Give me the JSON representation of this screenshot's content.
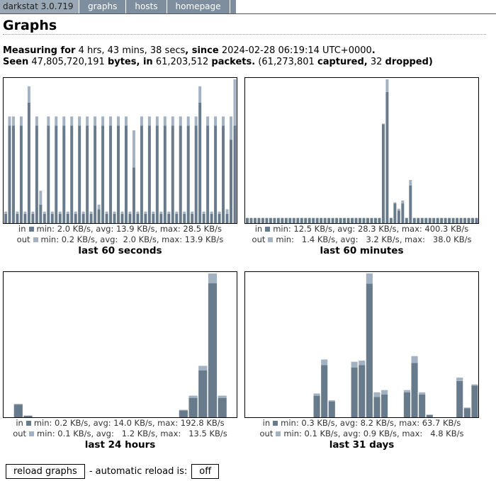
{
  "header": {
    "nav": [
      "darkstat 3.0.719",
      "graphs",
      "hosts",
      "homepage"
    ]
  },
  "title": "Graphs",
  "summary": [
    [
      {
        "text": "Measuring for",
        "bold": true
      },
      {
        "text": "4 hrs, 43 mins, 38 secs",
        "bold": false
      },
      {
        "text": ", since",
        "bold": true
      },
      {
        "text": "2024-02-28 06:19:14 UTC+0000",
        "bold": false
      },
      {
        "text": ".",
        "bold": true
      }
    ],
    [
      {
        "text": "Seen",
        "bold": true
      },
      {
        "text": "47,805,720,191",
        "bold": false
      },
      {
        "text": "bytes, in",
        "bold": true
      },
      {
        "text": "61,203,512",
        "bold": false
      },
      {
        "text": "packets.",
        "bold": true
      },
      {
        "text": "(61,273,801",
        "bold": false
      },
      {
        "text": "captured,",
        "bold": true
      },
      {
        "text": "32",
        "bold": false
      },
      {
        "text": "dropped)",
        "bold": true
      }
    ]
  ],
  "colors": {
    "in": "#687b8c",
    "out": "#a2b2c2"
  },
  "graphs": [
    {
      "title": "last 60 seconds",
      "in_label": "in",
      "out_label": "out",
      "in_stats": "min: 2.0 KB/s, avg: 13.9 KB/s, max: 28.5 KB/s",
      "out_stats": "min: 0.2 KB/s, avg:  2.0 KB/s, max: 13.9 KB/s",
      "in": [
        2,
        21,
        21,
        2,
        21,
        2,
        26,
        2,
        21,
        4,
        2,
        21,
        2,
        21,
        2,
        21,
        2,
        21,
        2,
        21,
        2,
        21,
        2,
        21,
        3,
        21,
        2,
        21,
        2,
        21,
        2,
        21,
        2,
        12,
        2,
        21,
        2,
        21,
        2,
        21,
        2,
        21,
        2,
        21,
        2,
        21,
        2,
        21,
        2,
        21,
        26,
        2,
        21,
        2,
        21,
        2,
        21,
        2,
        18,
        21
      ],
      "out": [
        0.5,
        2,
        2,
        0.5,
        2,
        0.5,
        3.5,
        0.5,
        2,
        3,
        0.5,
        2,
        0.5,
        2,
        0.5,
        2,
        0.5,
        2,
        0.5,
        2,
        0.5,
        2,
        0.5,
        2,
        1,
        2,
        0.5,
        2,
        0.5,
        2,
        0.5,
        2,
        0.5,
        8,
        0.5,
        2,
        0.5,
        2,
        0.5,
        2,
        0.5,
        2,
        0.5,
        2,
        0.5,
        2,
        0.5,
        2,
        0.5,
        2,
        3.5,
        0.5,
        2,
        0.5,
        2,
        0.5,
        2,
        1,
        5,
        10
      ]
    },
    {
      "title": "last 60 minutes",
      "in_label": "in",
      "out_label": "out",
      "in_stats": "min: 12.5 KB/s, avg: 28.3 KB/s, max: 400.3 KB/s",
      "out_stats": "min:   1.4 KB/s, avg:   3.2 KB/s, max:   38.0 KB/s",
      "in": [
        14,
        14,
        14,
        14,
        14,
        14,
        14,
        14,
        14,
        14,
        14,
        14,
        14,
        14,
        14,
        14,
        14,
        14,
        14,
        14,
        14,
        14,
        14,
        14,
        14,
        14,
        14,
        14,
        14,
        14,
        14,
        14,
        14,
        14,
        14,
        275,
        365,
        14,
        55,
        35,
        55,
        14,
        105,
        14,
        14,
        14,
        14,
        14,
        14,
        14,
        14,
        14,
        14,
        14,
        14,
        14,
        14,
        14,
        14,
        14
      ],
      "out": [
        1,
        1,
        1,
        1,
        1,
        1,
        1,
        1,
        1,
        1,
        1,
        1,
        1,
        1,
        1,
        1,
        1,
        1,
        1,
        1,
        1,
        1,
        1,
        1,
        1,
        1,
        1,
        1,
        1,
        1,
        1,
        1,
        1,
        1,
        1,
        2,
        35,
        1,
        3,
        5,
        8,
        1,
        15,
        1,
        1,
        1,
        1,
        1,
        1,
        1,
        1,
        1,
        1,
        1,
        1,
        1,
        1,
        1,
        1,
        1
      ]
    },
    {
      "title": "last 24 hours",
      "in_label": "in",
      "out_label": "out",
      "in_stats": "min: 0.2 KB/s, avg: 14.0 KB/s, max: 192.8 KB/s",
      "out_stats": "min: 0.1 KB/s, avg:   1.2 KB/s, max:   13.5 KB/s",
      "in": [
        0,
        17,
        2,
        0,
        0,
        0,
        0,
        0,
        0,
        0,
        0,
        0,
        0,
        0,
        0,
        0,
        0,
        0,
        9,
        26,
        63,
        180,
        26,
        0
      ],
      "out": [
        0,
        1,
        0.3,
        0,
        0,
        0,
        0,
        0,
        0,
        0,
        0,
        0,
        0,
        0,
        0,
        0,
        0,
        0,
        1,
        3,
        6,
        13,
        3,
        0
      ]
    },
    {
      "title": "last 31 days",
      "in_label": "in",
      "out_label": "out",
      "in_stats": "min: 0.3 KB/s, avg: 8.2 KB/s, max: 63.7 KB/s",
      "out_stats": "min: 0.1 KB/s, avg: 0.9 KB/s, max:   4.8 KB/s",
      "in": [
        0,
        0,
        0,
        0,
        0,
        0,
        0,
        0,
        0,
        9.5,
        23,
        7,
        0,
        0,
        22,
        23,
        59,
        9,
        10,
        0,
        0,
        11,
        24,
        10,
        1,
        0,
        0,
        0,
        16,
        4,
        14
      ],
      "out": [
        0,
        0,
        0,
        0,
        0,
        0,
        0,
        0,
        0,
        1,
        2.5,
        0.5,
        0,
        0,
        2.5,
        2,
        4.5,
        2,
        2,
        0,
        0,
        1,
        3,
        1,
        0.2,
        0,
        0,
        0,
        1.5,
        0.3,
        0.5
      ]
    }
  ],
  "footer": {
    "button": "reload graphs",
    "text": "- automatic reload is:",
    "toggle": "off"
  }
}
